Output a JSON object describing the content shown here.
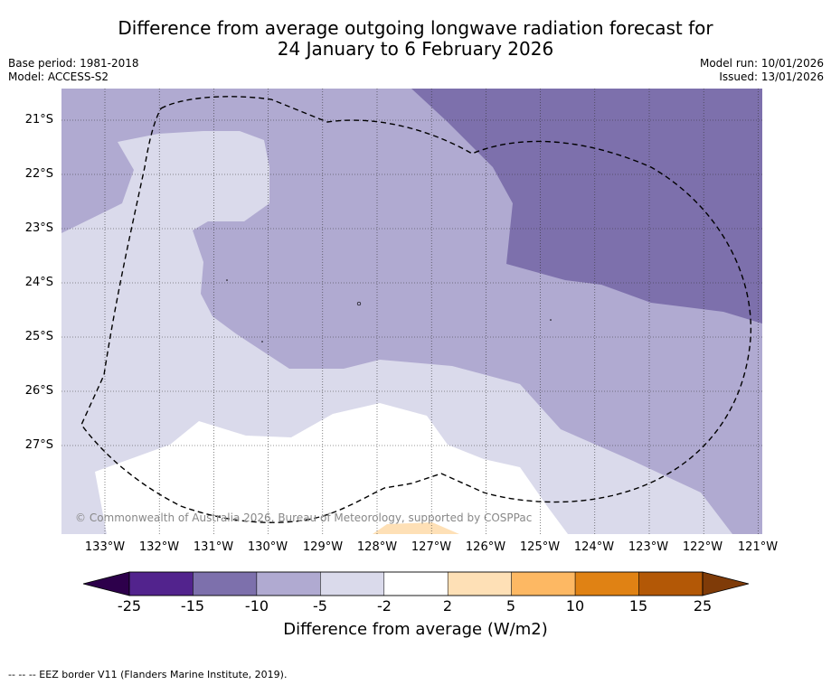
{
  "title": {
    "line1": "Difference from average outgoing longwave radiation forecast for",
    "line2": "24 January to 6 February 2026"
  },
  "meta": {
    "base_period": "Base period: 1981-2018",
    "model": "Model: ACCESS-S2",
    "model_run": "Model run: 10/01/2026",
    "issued": "Issued: 13/01/2026"
  },
  "map": {
    "latitude_labels": [
      "21°S",
      "22°S",
      "23°S",
      "24°S",
      "25°S",
      "26°S",
      "27°S"
    ],
    "longitude_labels": [
      "133°W",
      "132°W",
      "131°W",
      "130°W",
      "129°W",
      "128°W",
      "127°W",
      "126°W",
      "125°W",
      "124°W",
      "123°W",
      "122°W",
      "121°W"
    ],
    "copyright": "© Commonwealth of Australia 2026, Bureau of Meteorology, supported by COSPPac"
  },
  "colorbar": {
    "ticks": [
      "-25",
      "-15",
      "-10",
      "-5",
      "-2",
      "2",
      "5",
      "10",
      "15",
      "25"
    ],
    "colors": [
      "#52238d",
      "#7d70ac",
      "#b0aad1",
      "#dadaeb",
      "#ffffff",
      "#fee0b6",
      "#fdb863",
      "#e08214",
      "#b35806"
    ],
    "under_color": "#2d004b",
    "over_color": "#7f3b08",
    "label": "Difference from average (W/m2)"
  },
  "footer": "--  --  -- EEZ border V11 (Flanders Marine Institute, 2019)."
}
